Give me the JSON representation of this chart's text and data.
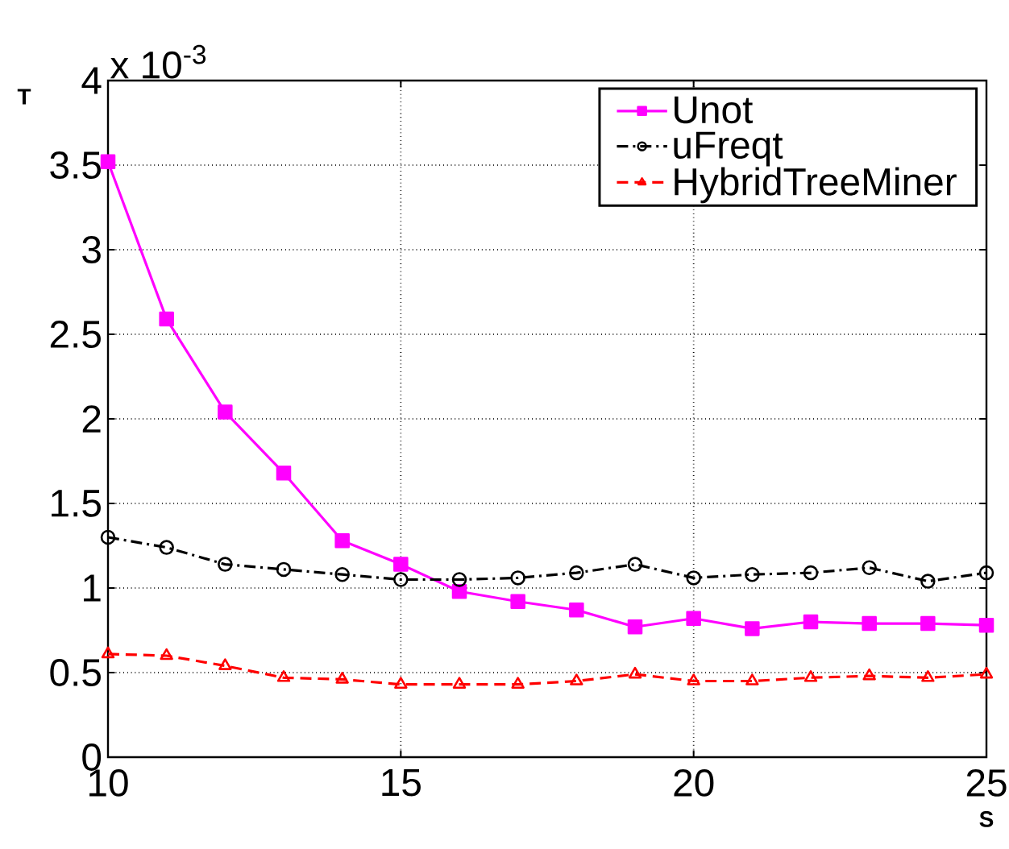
{
  "chart_data": {
    "type": "line",
    "xlabel": "S",
    "ylabel": "T",
    "annotations": [
      "x 10$^{-3}$"
    ],
    "x": [
      10,
      11,
      12,
      13,
      14,
      15,
      16,
      17,
      18,
      19,
      20,
      21,
      22,
      23,
      24,
      25
    ],
    "xlim": [
      10,
      25
    ],
    "xticks": [
      10,
      15,
      20,
      25
    ],
    "ylim": [
      0,
      4
    ],
    "yticks": [
      0,
      0.5,
      1,
      1.5,
      2,
      2.5,
      3,
      3.5,
      4
    ],
    "grid": true,
    "legend": "top right",
    "series": [
      {
        "name": "Unot",
        "color": "#ff00ff",
        "marker": "square",
        "line_style": "solid",
        "values": [
          3.52,
          2.59,
          2.04,
          1.68,
          1.28,
          1.14,
          0.98,
          0.92,
          0.87,
          0.77,
          0.82,
          0.76,
          0.8,
          0.79,
          0.79,
          0.78
        ]
      },
      {
        "name": "uFreqt",
        "color": "#000000",
        "marker": "circle",
        "line_style": "dashdot",
        "values": [
          1.3,
          1.24,
          1.14,
          1.11,
          1.08,
          1.05,
          1.05,
          1.06,
          1.09,
          1.14,
          1.06,
          1.08,
          1.09,
          1.12,
          1.04,
          1.09
        ]
      },
      {
        "name": "HybridTreeMiner",
        "color": "#ff0000",
        "marker": "triangle",
        "line_style": "dashed",
        "values": [
          0.61,
          0.6,
          0.54,
          0.47,
          0.46,
          0.43,
          0.43,
          0.43,
          0.45,
          0.49,
          0.45,
          0.45,
          0.47,
          0.48,
          0.47,
          0.49
        ]
      }
    ]
  }
}
